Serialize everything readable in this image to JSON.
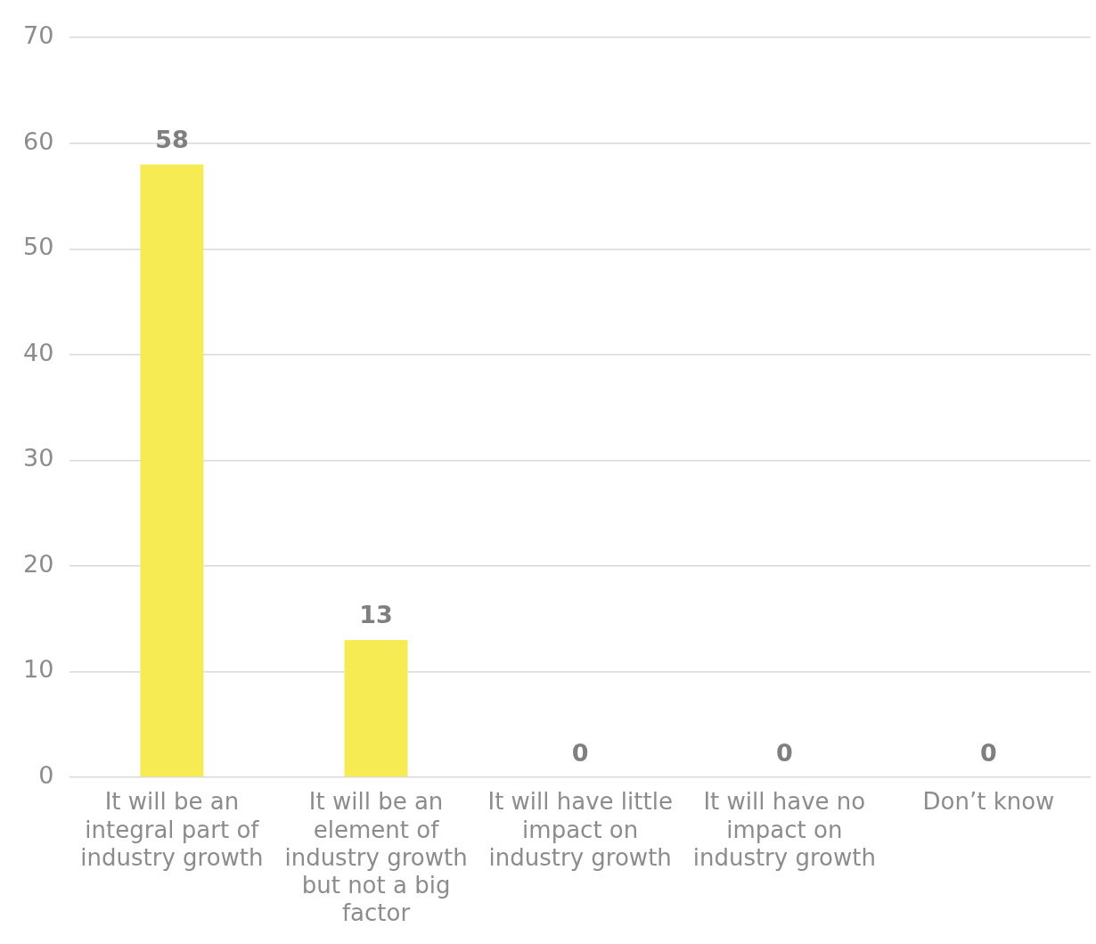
{
  "chart_data": {
    "type": "bar",
    "categories": [
      "It will be an integral part of industry growth",
      "It will be an element of industry growth but not a big factor",
      "It will have little impact on industry growth",
      "It will have no impact on industry growth",
      "Don’t know"
    ],
    "values": [
      58,
      13,
      0,
      0,
      0
    ],
    "color": "#f7eb54",
    "ylim": [
      0,
      70
    ],
    "yticks": [
      0,
      10,
      20,
      30,
      40,
      50,
      60,
      70
    ],
    "grid": "y",
    "legend": false,
    "data_labels": true
  }
}
